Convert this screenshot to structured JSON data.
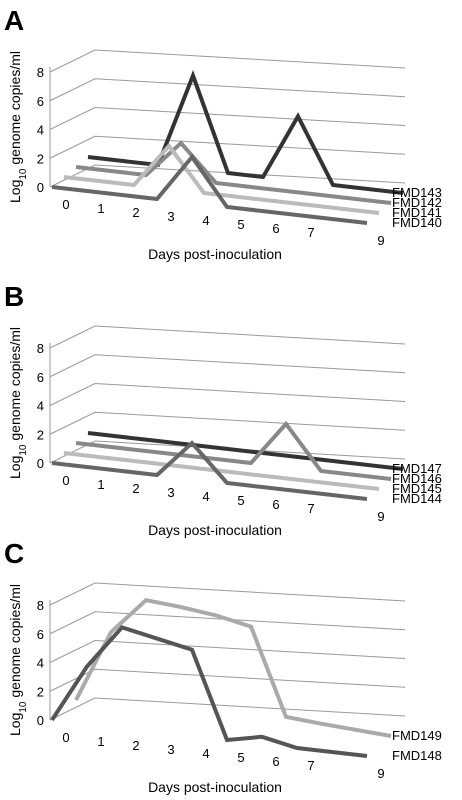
{
  "chart_data": [
    {
      "type": "line",
      "panel": "A",
      "ylabel": [
        "Log",
        "10",
        " genome copies/ml"
      ],
      "xlabel": "Days post-inoculation",
      "x": [
        0,
        1,
        2,
        3,
        4,
        5,
        6,
        7,
        9
      ],
      "xlim": [
        0,
        9
      ],
      "ylim": [
        0,
        8
      ],
      "yticks": [
        0,
        2,
        4,
        6,
        8
      ],
      "series": [
        {
          "name": "FMD140",
          "color": "#666666",
          "values": [
            0,
            0,
            0,
            0,
            3.2,
            0,
            0,
            0,
            0
          ]
        },
        {
          "name": "FMD141",
          "color": "#bbbbbb",
          "values": [
            0,
            0,
            0,
            3,
            0,
            0,
            0,
            0,
            0
          ]
        },
        {
          "name": "FMD142",
          "color": "#888888",
          "values": [
            0,
            0,
            0,
            2.5,
            0,
            0,
            0,
            0,
            0
          ]
        },
        {
          "name": "FMD143",
          "color": "#333333",
          "values": [
            0,
            0,
            0,
            6.5,
            0,
            0,
            4.5,
            0,
            0
          ]
        }
      ]
    },
    {
      "type": "line",
      "panel": "B",
      "ylabel": [
        "Log",
        "10",
        " genome copies/ml"
      ],
      "xlabel": "Days post-inoculation",
      "x": [
        0,
        1,
        2,
        3,
        4,
        5,
        6,
        7,
        9
      ],
      "xlim": [
        0,
        9
      ],
      "ylim": [
        0,
        8
      ],
      "yticks": [
        0,
        2,
        4,
        6,
        8
      ],
      "series": [
        {
          "name": "FMD144",
          "color": "#666666",
          "values": [
            0,
            0,
            0,
            0,
            2.5,
            0,
            0,
            0,
            0
          ]
        },
        {
          "name": "FMD145",
          "color": "#bbbbbb",
          "values": [
            0,
            0,
            0,
            0,
            0,
            0,
            0,
            0,
            0
          ]
        },
        {
          "name": "FMD146",
          "color": "#888888",
          "values": [
            0,
            0,
            0,
            0,
            0,
            0,
            3,
            0,
            0
          ]
        },
        {
          "name": "FMD147",
          "color": "#333333",
          "values": [
            0,
            0,
            0,
            0,
            0,
            0,
            0,
            0,
            0
          ]
        }
      ]
    },
    {
      "type": "line",
      "panel": "C",
      "ylabel": [
        "Log",
        "10",
        " genome copies/ml"
      ],
      "xlabel": "Days post-inoculation",
      "x": [
        0,
        1,
        2,
        3,
        4,
        5,
        6,
        7,
        9
      ],
      "xlim": [
        0,
        9
      ],
      "ylim": [
        0,
        8
      ],
      "yticks": [
        0,
        2,
        4,
        6,
        8
      ],
      "series": [
        {
          "name": "FMD148",
          "color": "#555555",
          "values": [
            0,
            4,
            7,
            6.5,
            6,
            0,
            0.5,
            0,
            0
          ]
        },
        {
          "name": "FMD149",
          "color": "#aaaaaa",
          "values": [
            0,
            5,
            7.5,
            7.3,
            7,
            6.5,
            0.5,
            0.3,
            0
          ]
        }
      ]
    }
  ]
}
